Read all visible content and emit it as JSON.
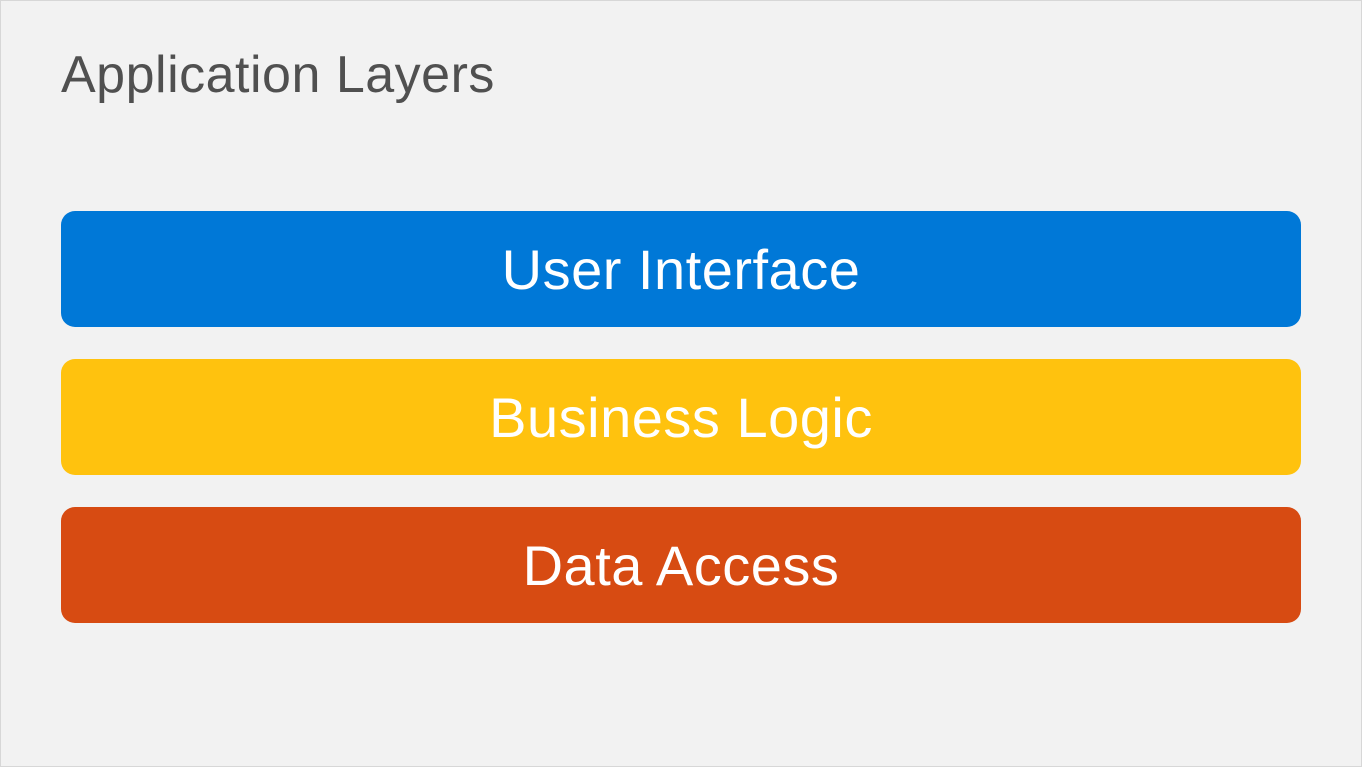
{
  "diagram": {
    "type": "infographic",
    "title": "Application Layers",
    "title_color": "#505050",
    "title_fontsize": 52,
    "background_color": "#f2f2f2",
    "border_color": "#d7d7d7",
    "layer_text_color": "#ffffff",
    "layer_fontsize": 56,
    "layer_height": 116,
    "layer_border_radius": 14,
    "layer_gap": 32,
    "layers": [
      {
        "label": "User Interface",
        "fill_color": "#0078d7"
      },
      {
        "label": "Business Logic",
        "fill_color": "#ffc20e"
      },
      {
        "label": "Data Access",
        "fill_color": "#d74b12"
      }
    ]
  }
}
